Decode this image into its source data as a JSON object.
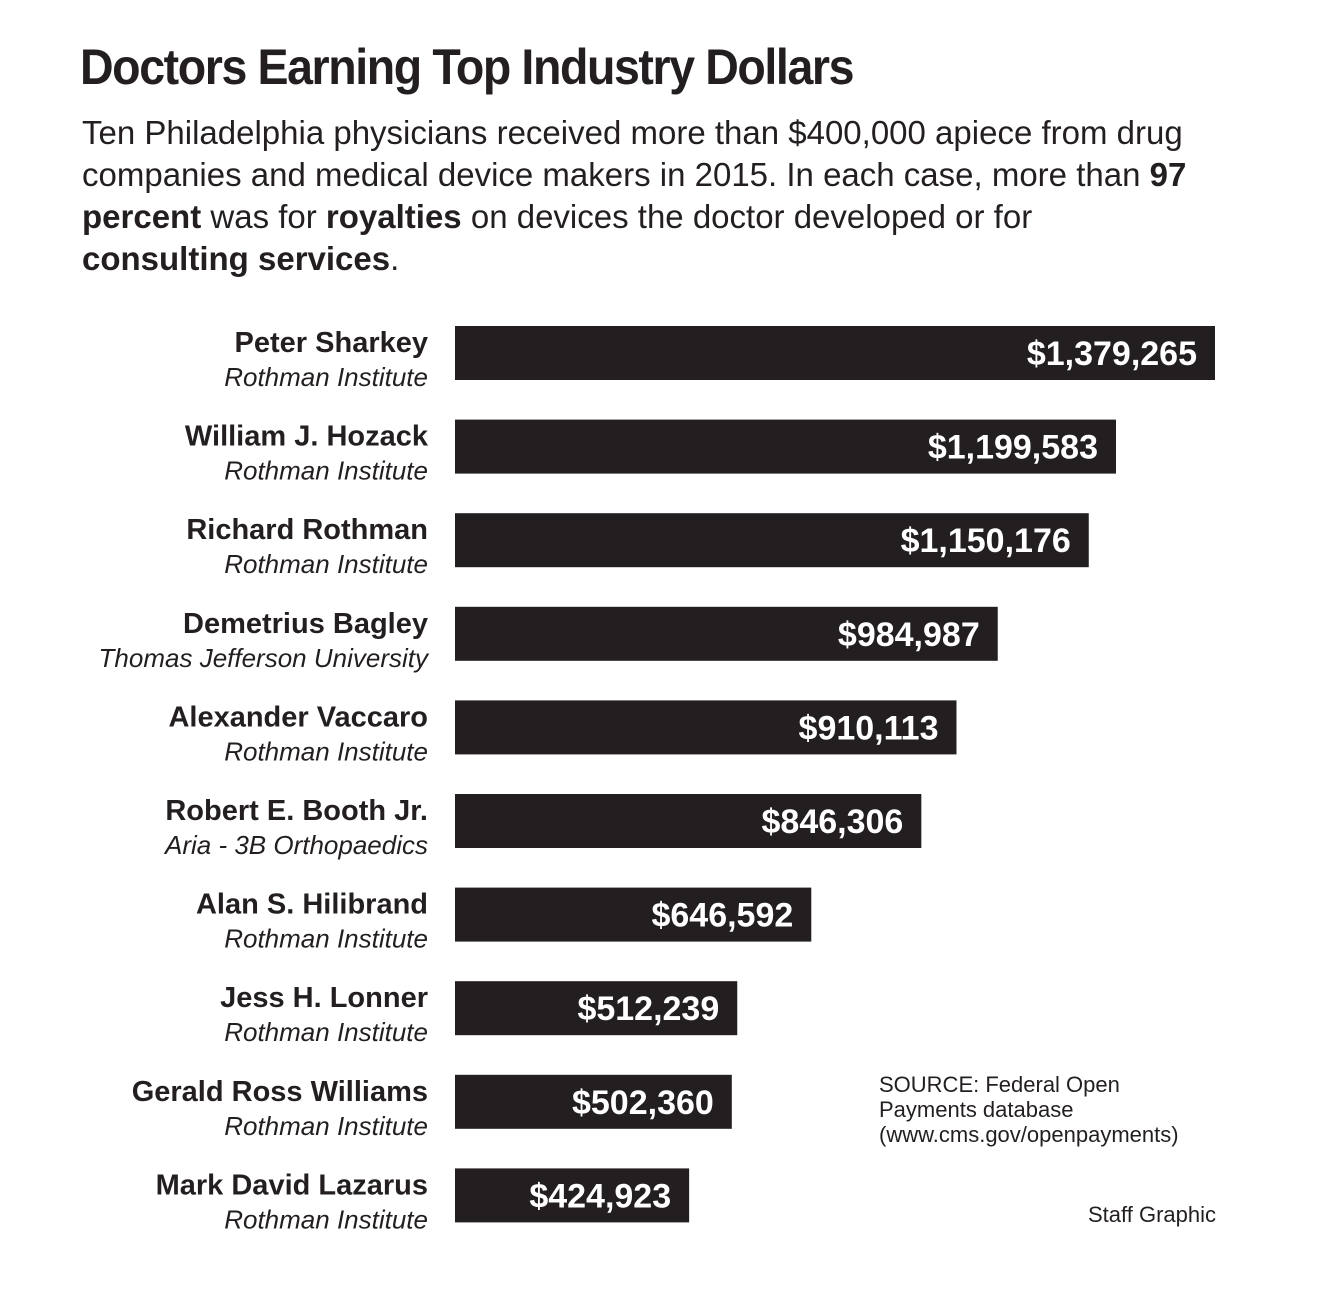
{
  "title": "Doctors Earning Top Industry Dollars",
  "subtitle": {
    "part1": "Ten Philadelphia physicians received more than $400,000 apiece from drug companies and medical device makers in 2015. In each case, more than ",
    "bold1": "97 percent",
    "part2": " was for ",
    "bold2": "royalties",
    "part3": " on devices the doctor developed or for ",
    "bold3": "consulting services",
    "part4": "."
  },
  "chart_data": {
    "type": "bar",
    "orientation": "horizontal",
    "bar_color": "#231f20",
    "label_color": "#ffffff",
    "categories": [
      {
        "name": "Peter Sharkey",
        "affiliation": "Rothman Institute"
      },
      {
        "name": "William J. Hozack",
        "affiliation": "Rothman Institute"
      },
      {
        "name": "Richard Rothman",
        "affiliation": "Rothman Institute"
      },
      {
        "name": "Demetrius Bagley",
        "affiliation": "Thomas Jefferson University"
      },
      {
        "name": "Alexander Vaccaro",
        "affiliation": "Rothman Institute"
      },
      {
        "name": "Robert E. Booth Jr.",
        "affiliation": "Aria - 3B Orthopaedics"
      },
      {
        "name": "Alan S. Hilibrand",
        "affiliation": "Rothman Institute"
      },
      {
        "name": "Jess H. Lonner",
        "affiliation": "Rothman Institute"
      },
      {
        "name": "Gerald Ross Williams",
        "affiliation": "Rothman Institute"
      },
      {
        "name": "Mark David Lazarus",
        "affiliation": "Rothman Institute"
      }
    ],
    "values": [
      1379265,
      1199583,
      1150176,
      984987,
      910113,
      846306,
      646592,
      512239,
      502360,
      424923
    ],
    "value_labels": [
      "$1,379,265",
      "$1,199,583",
      "$1,150,176",
      "$984,987",
      "$910,113",
      "$846,306",
      "$646,592",
      "$512,239",
      "$502,360",
      "$424,923"
    ],
    "xlim": [
      0,
      1379265
    ],
    "grid": false
  },
  "source": {
    "line1": "SOURCE: Federal Open",
    "line2": "Payments database",
    "line3": "(www.cms.gov/openpayments)"
  },
  "credit": "Staff Graphic"
}
